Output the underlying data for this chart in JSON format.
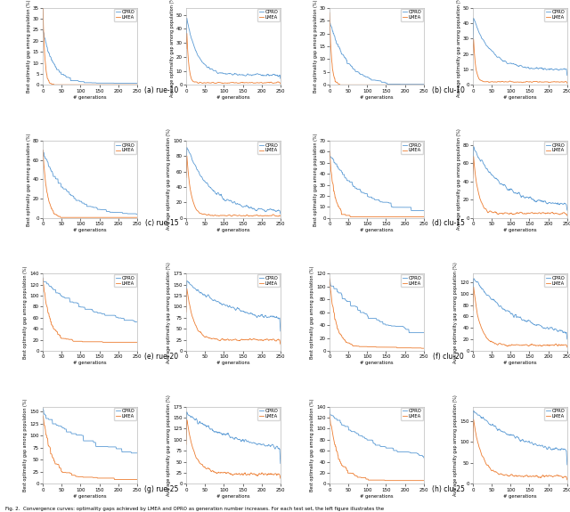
{
  "opro_color": "#5B9BD5",
  "lmea_color": "#ED7D31",
  "bg": "#ffffff",
  "x_ticks": [
    0,
    50,
    100,
    150,
    200,
    250
  ],
  "xlabel": "# generations",
  "ylabel_best": "Best optimality gap among population (%)",
  "ylabel_avg": "Average optimality gap among population (%)",
  "legend_opro": "OPRO",
  "legend_lmea": "LMEA",
  "noise_seed": 42,
  "subplots": [
    {
      "label": "(a) rue-10",
      "opro_best_y0": 25,
      "opro_best_decay": 0.035,
      "opro_best_floor": 1.5,
      "opro_best_noise": 0.5,
      "lmea_best_y0": 38,
      "lmea_best_decay": 0.2,
      "lmea_best_floor": 0.2,
      "lmea_best_noise": 0.3,
      "ylim_best": [
        0,
        35
      ],
      "opro_avg_y0": 50,
      "opro_avg_decay": 0.035,
      "opro_avg_floor": 7.0,
      "opro_avg_noise": 1.0,
      "lmea_avg_y0": 52,
      "lmea_avg_decay": 0.2,
      "lmea_avg_floor": 1.5,
      "lmea_avg_noise": 0.5,
      "ylim_avg": [
        0,
        55
      ]
    },
    {
      "label": "(b) clu-10",
      "opro_best_y0": 25,
      "opro_best_decay": 0.022,
      "opro_best_floor": 0.5,
      "opro_best_noise": 0.4,
      "lmea_best_y0": 28,
      "lmea_best_decay": 0.18,
      "lmea_best_floor": 0.1,
      "lmea_best_noise": 0.3,
      "ylim_best": [
        0,
        30
      ],
      "opro_avg_y0": 45,
      "opro_avg_decay": 0.022,
      "opro_avg_floor": 10.0,
      "opro_avg_noise": 0.8,
      "lmea_avg_y0": 40,
      "lmea_avg_decay": 0.18,
      "lmea_avg_floor": 2.0,
      "lmea_avg_noise": 0.4,
      "ylim_avg": [
        0,
        50
      ]
    },
    {
      "label": "(c) rue-15",
      "opro_best_y0": 70,
      "opro_best_decay": 0.016,
      "opro_best_floor": 5.0,
      "opro_best_noise": 1.5,
      "lmea_best_y0": 72,
      "lmea_best_decay": 0.09,
      "lmea_best_floor": 1.0,
      "lmea_best_noise": 0.8,
      "ylim_best": [
        0,
        80
      ],
      "opro_avg_y0": 95,
      "opro_avg_decay": 0.016,
      "opro_avg_floor": 8.0,
      "opro_avg_noise": 2.0,
      "lmea_avg_y0": 95,
      "lmea_avg_decay": 0.09,
      "lmea_avg_floor": 3.0,
      "lmea_avg_noise": 1.0,
      "ylim_avg": [
        0,
        100
      ]
    },
    {
      "label": "(d) clu-15",
      "opro_best_y0": 60,
      "opro_best_decay": 0.013,
      "opro_best_floor": 8.0,
      "opro_best_noise": 1.5,
      "lmea_best_y0": 60,
      "lmea_best_decay": 0.08,
      "lmea_best_floor": 2.0,
      "lmea_best_noise": 1.0,
      "ylim_best": [
        0,
        70
      ],
      "opro_avg_y0": 80,
      "opro_avg_decay": 0.013,
      "opro_avg_floor": 12.0,
      "opro_avg_noise": 2.0,
      "lmea_avg_y0": 78,
      "lmea_avg_decay": 0.08,
      "lmea_avg_floor": 5.0,
      "lmea_avg_noise": 1.2,
      "ylim_avg": [
        0,
        85
      ]
    },
    {
      "label": "(e) rue-20",
      "opro_best_y0": 130,
      "opro_best_decay": 0.008,
      "opro_best_floor": 48.0,
      "opro_best_noise": 3.0,
      "lmea_best_y0": 130,
      "lmea_best_decay": 0.055,
      "lmea_best_floor": 20.0,
      "lmea_best_noise": 2.0,
      "ylim_best": [
        0,
        140
      ],
      "opro_avg_y0": 160,
      "opro_avg_decay": 0.008,
      "opro_avg_floor": 60.0,
      "opro_avg_noise": 3.5,
      "lmea_avg_y0": 155,
      "lmea_avg_decay": 0.055,
      "lmea_avg_floor": 25.0,
      "lmea_avg_noise": 2.5,
      "ylim_avg": [
        0,
        175
      ]
    },
    {
      "label": "(f) clu-20",
      "opro_best_y0": 110,
      "opro_best_decay": 0.009,
      "opro_best_floor": 22.0,
      "opro_best_noise": 2.5,
      "lmea_best_y0": 110,
      "lmea_best_decay": 0.06,
      "lmea_best_floor": 8.0,
      "lmea_best_noise": 1.5,
      "ylim_best": [
        0,
        120
      ],
      "opro_avg_y0": 130,
      "opro_avg_decay": 0.009,
      "opro_avg_floor": 22.0,
      "opro_avg_noise": 3.0,
      "lmea_avg_y0": 125,
      "lmea_avg_decay": 0.06,
      "lmea_avg_floor": 10.0,
      "lmea_avg_noise": 2.0,
      "ylim_avg": [
        0,
        135
      ]
    },
    {
      "label": "(g) rue-25",
      "opro_best_y0": 150,
      "opro_best_decay": 0.007,
      "opro_best_floor": 55.0,
      "opro_best_noise": 4.0,
      "lmea_best_y0": 145,
      "lmea_best_decay": 0.045,
      "lmea_best_floor": 18.0,
      "lmea_best_noise": 3.0,
      "ylim_best": [
        0,
        160
      ],
      "opro_avg_y0": 160,
      "opro_avg_decay": 0.007,
      "opro_avg_floor": 65.0,
      "opro_avg_noise": 4.5,
      "lmea_avg_y0": 155,
      "lmea_avg_decay": 0.045,
      "lmea_avg_floor": 22.0,
      "lmea_avg_noise": 3.5,
      "ylim_avg": [
        0,
        175
      ]
    },
    {
      "label": "(h) clu-25",
      "opro_best_y0": 130,
      "opro_best_decay": 0.007,
      "opro_best_floor": 40.0,
      "opro_best_noise": 3.5,
      "lmea_best_y0": 125,
      "lmea_best_decay": 0.045,
      "lmea_best_floor": 12.0,
      "lmea_best_noise": 2.5,
      "ylim_best": [
        0,
        140
      ],
      "opro_avg_y0": 175,
      "opro_avg_decay": 0.007,
      "opro_avg_floor": 58.0,
      "opro_avg_noise": 4.0,
      "lmea_avg_y0": 165,
      "lmea_avg_decay": 0.045,
      "lmea_avg_floor": 18.0,
      "lmea_avg_noise": 3.0,
      "ylim_avg": [
        0,
        185
      ]
    }
  ],
  "fig_caption": "Fig. 2.  Convergence curves: optimality gaps achieved by LMEA and OPRO as generation number increases. For each test set, the left figure illustrates the"
}
